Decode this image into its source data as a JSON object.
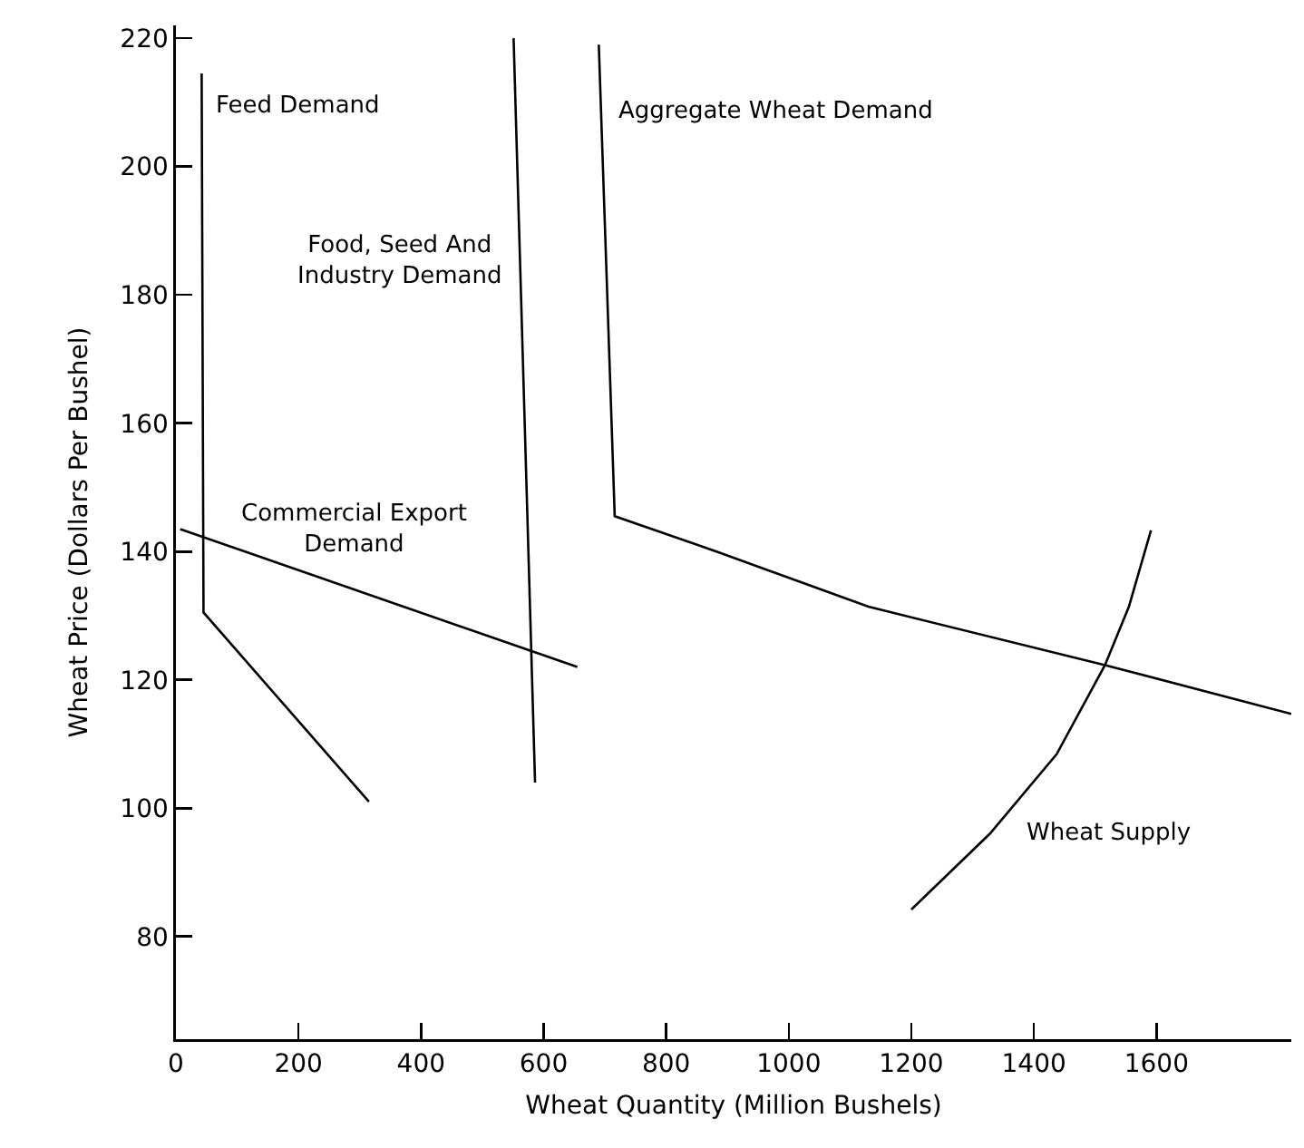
{
  "chart_data": {
    "type": "line",
    "xlabel": "Wheat Quantity (Million Bushels)",
    "ylabel": "Wheat Price (Dollars Per Bushel)",
    "xlim": [
      0,
      1820
    ],
    "xticks": [
      0,
      200,
      400,
      600,
      800,
      1000,
      1200,
      1400,
      1600
    ],
    "ylim": [
      64,
      222
    ],
    "yticks": [
      80,
      100,
      120,
      140,
      160,
      180,
      200,
      220
    ],
    "grid": false,
    "legend": false,
    "marker": "none",
    "line_style": "solid",
    "series": [
      {
        "name": "Feed Demand",
        "color": "#000000",
        "x": [
          42,
          45,
          315
        ],
        "values": [
          214.5,
          130.5,
          101
        ]
      },
      {
        "name": "Commercial Export Demand",
        "color": "#000000",
        "x": [
          7,
          655
        ],
        "values": [
          143.5,
          122
        ]
      },
      {
        "name": "Food, Seed And Industry Demand",
        "color": "#000000",
        "x": [
          551,
          586
        ],
        "values": [
          220,
          104
        ]
      },
      {
        "name": "Aggregate Wheat Demand",
        "color": "#000000",
        "x": [
          690,
          716,
          882,
          1130,
          1516,
          1820
        ],
        "values": [
          219,
          145.5,
          140,
          131.4,
          122.3,
          114.7
        ]
      },
      {
        "name": "Wheat Supply",
        "color": "#000000",
        "x": [
          1200,
          1328,
          1437,
          1516,
          1555,
          1591
        ],
        "values": [
          84.2,
          96,
          108.4,
          122.3,
          131.4,
          143.3
        ]
      }
    ]
  }
}
